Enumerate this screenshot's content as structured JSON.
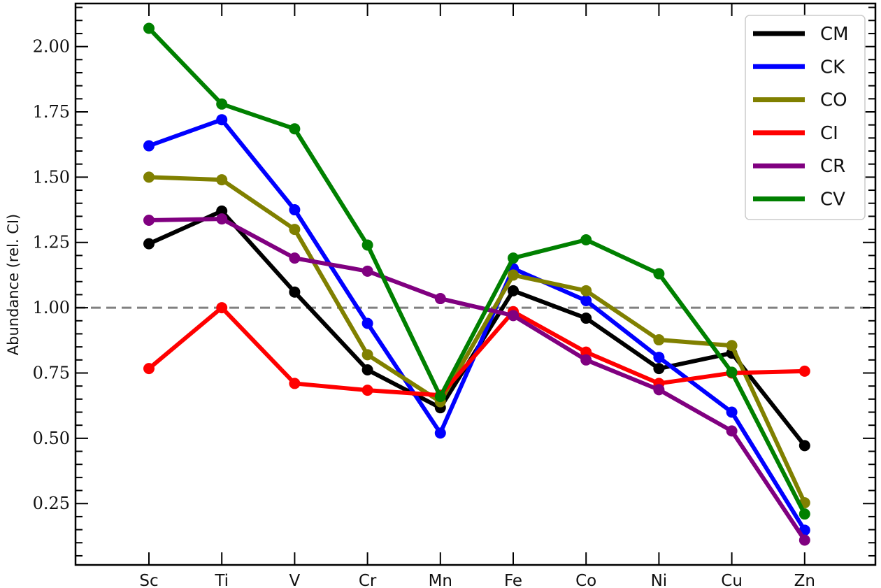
{
  "chart_data": {
    "type": "line",
    "title": "",
    "xlabel": "",
    "ylabel": "Abundance (rel. CI)",
    "categories": [
      "Sc",
      "Ti",
      "V",
      "Cr",
      "Mn",
      "Fe",
      "Co",
      "Ni",
      "Cu",
      "Zn"
    ],
    "ylim": [
      0.015,
      2.165
    ],
    "yticks": [
      0.25,
      0.5,
      0.75,
      1.0,
      1.25,
      1.5,
      1.75,
      2.0
    ],
    "ytick_labels": [
      "0.25",
      "0.50",
      "0.75",
      "1.00",
      "1.25",
      "1.50",
      "1.75",
      "2.00"
    ],
    "reference_line": {
      "y": 1.0,
      "style": "dashed",
      "color": "#808080"
    },
    "grid": false,
    "legend_position": "upper right",
    "series": [
      {
        "name": "CM",
        "color": "#000000",
        "values": [
          1.245,
          1.37,
          1.06,
          0.762,
          0.617,
          1.065,
          0.96,
          0.767,
          0.826,
          0.472
        ]
      },
      {
        "name": "CK",
        "color": "#0000ff",
        "values": [
          1.62,
          1.72,
          1.375,
          0.94,
          0.52,
          1.15,
          1.027,
          0.81,
          0.6,
          0.148
        ]
      },
      {
        "name": "CO",
        "color": "#808000",
        "values": [
          1.5,
          1.49,
          1.3,
          0.82,
          0.64,
          1.125,
          1.065,
          0.877,
          0.855,
          0.253
        ]
      },
      {
        "name": "CI",
        "color": "#ff0000",
        "values": [
          0.767,
          1.0,
          0.71,
          0.684,
          0.665,
          0.985,
          0.83,
          0.71,
          0.75,
          0.757
        ]
      },
      {
        "name": "CR",
        "color": "#800080",
        "values": [
          1.335,
          1.34,
          1.19,
          1.14,
          1.035,
          0.97,
          0.8,
          0.686,
          0.528,
          0.11
        ]
      },
      {
        "name": "CV",
        "color": "#008000",
        "values": [
          2.07,
          1.78,
          1.685,
          1.24,
          0.66,
          1.19,
          1.26,
          1.13,
          0.753,
          0.21
        ]
      }
    ]
  }
}
